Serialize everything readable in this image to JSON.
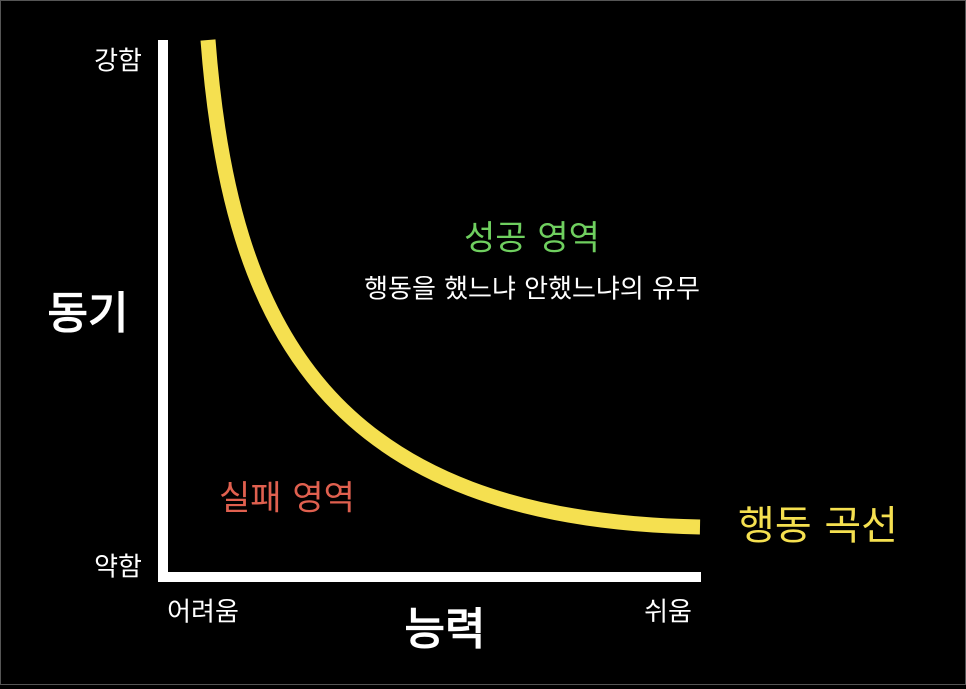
{
  "axes": {
    "y": {
      "label": "동기",
      "high": "강함",
      "low": "약함"
    },
    "x": {
      "label": "능력",
      "low": "어려움",
      "high": "쉬움"
    }
  },
  "regions": {
    "success": {
      "title": "성공 영역",
      "description": "행동을 했느냐 안했느냐의 유무"
    },
    "failure": {
      "title": "실패 영역"
    }
  },
  "curve": {
    "label": "행동 곡선"
  }
}
